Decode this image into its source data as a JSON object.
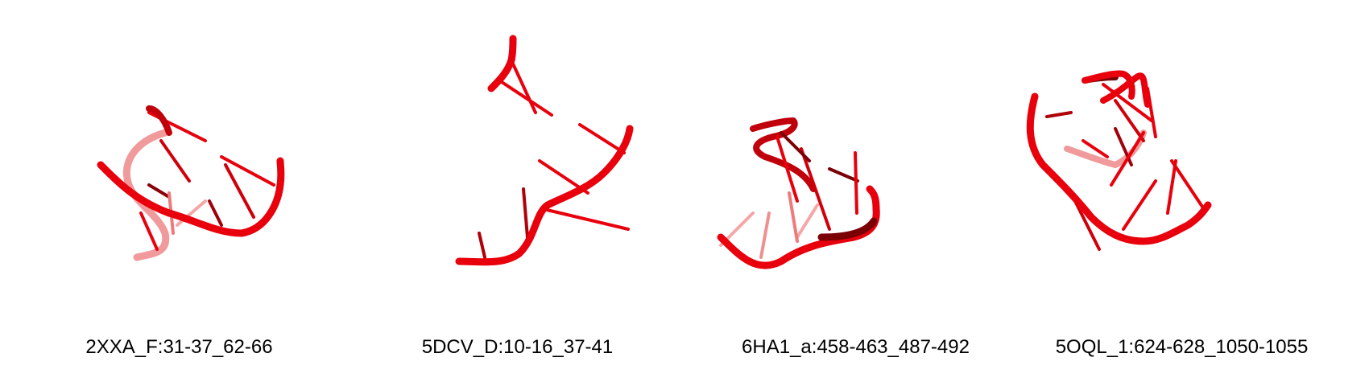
{
  "colors": {
    "strand": "#e8000c",
    "strand_dark": "#7a0006",
    "strand_faded": "#f08f90",
    "background": "#ffffff"
  },
  "panels": [
    {
      "caption": "2XXA_F:31-37_62-66"
    },
    {
      "caption": "5DCV_D:10-16_37-41"
    },
    {
      "caption": "6HA1_a:458-463_487-492"
    },
    {
      "caption": "5OQL_1:624-628_1050-1055"
    }
  ]
}
